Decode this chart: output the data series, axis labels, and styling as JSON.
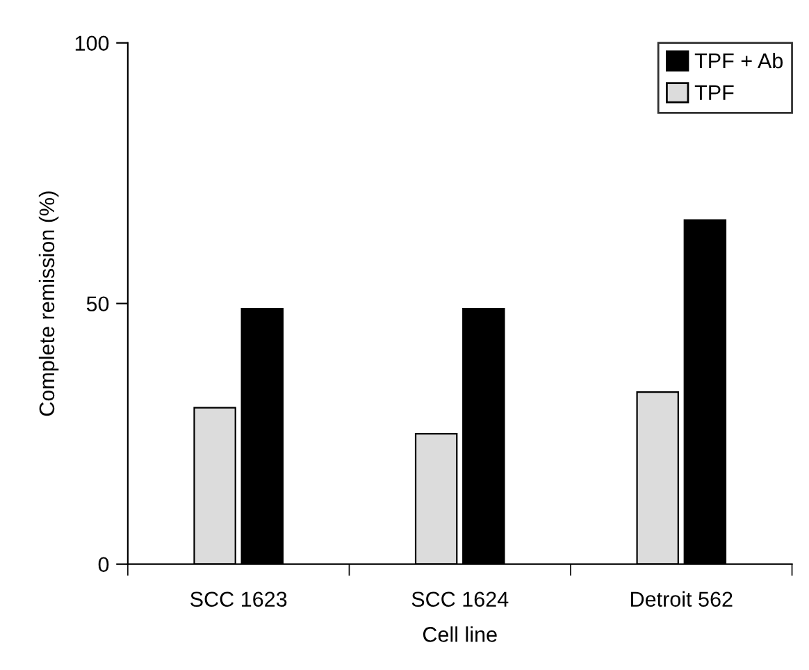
{
  "chart_data": {
    "type": "bar",
    "xlabel": "Cell line",
    "ylabel": "Complete remission (%)",
    "categories": [
      "SCC 1623",
      "SCC 1624",
      "Detroit 562"
    ],
    "series": [
      {
        "name": "TPF",
        "color": "#dcdcdc",
        "values": [
          30,
          25,
          33
        ]
      },
      {
        "name": "TPF + Ab",
        "color": "#000000",
        "values": [
          49,
          49,
          66
        ]
      }
    ],
    "ylim": [
      0,
      100
    ],
    "yticks": [
      0,
      50,
      100
    ],
    "grid": false,
    "legend": "top right"
  }
}
